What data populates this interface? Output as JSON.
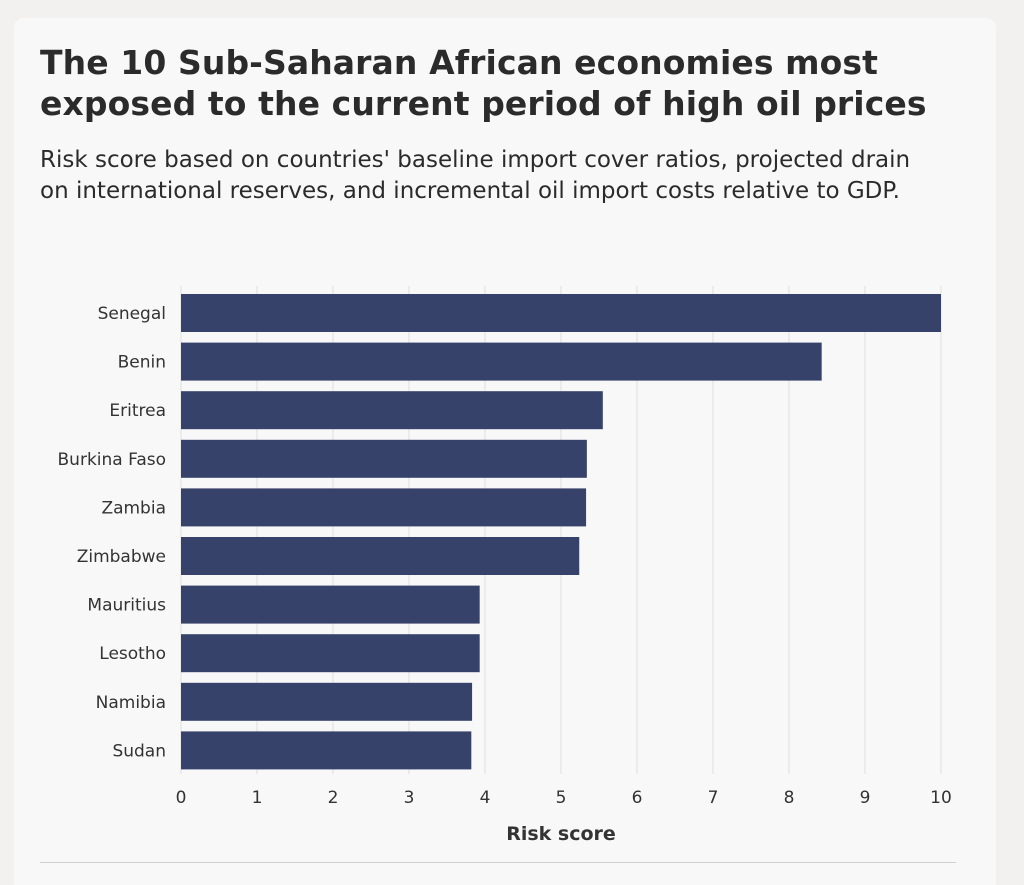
{
  "chart_data": {
    "type": "bar",
    "orientation": "horizontal",
    "title": "The 10 Sub-Saharan African economies most exposed to the current period of high oil prices",
    "subtitle": "Risk score based on countries' baseline import cover ratios, projected drain on international reserves, and incremental oil import costs relative to GDP.",
    "categories": [
      "Senegal",
      "Benin",
      "Eritrea",
      "Burkina Faso",
      "Zambia",
      "Zimbabwe",
      "Mauritius",
      "Lesotho",
      "Namibia",
      "Sudan"
    ],
    "values": [
      10,
      8.43,
      5.55,
      5.34,
      5.33,
      5.24,
      3.93,
      3.93,
      3.83,
      3.82
    ],
    "xlabel": "Risk score",
    "ylabel": "",
    "xlim": [
      0,
      10
    ],
    "xticks": [
      "0",
      "1",
      "2",
      "3",
      "4",
      "5",
      "6",
      "7",
      "8",
      "9",
      "10"
    ],
    "grid": true,
    "bar_color": "#36426a"
  }
}
